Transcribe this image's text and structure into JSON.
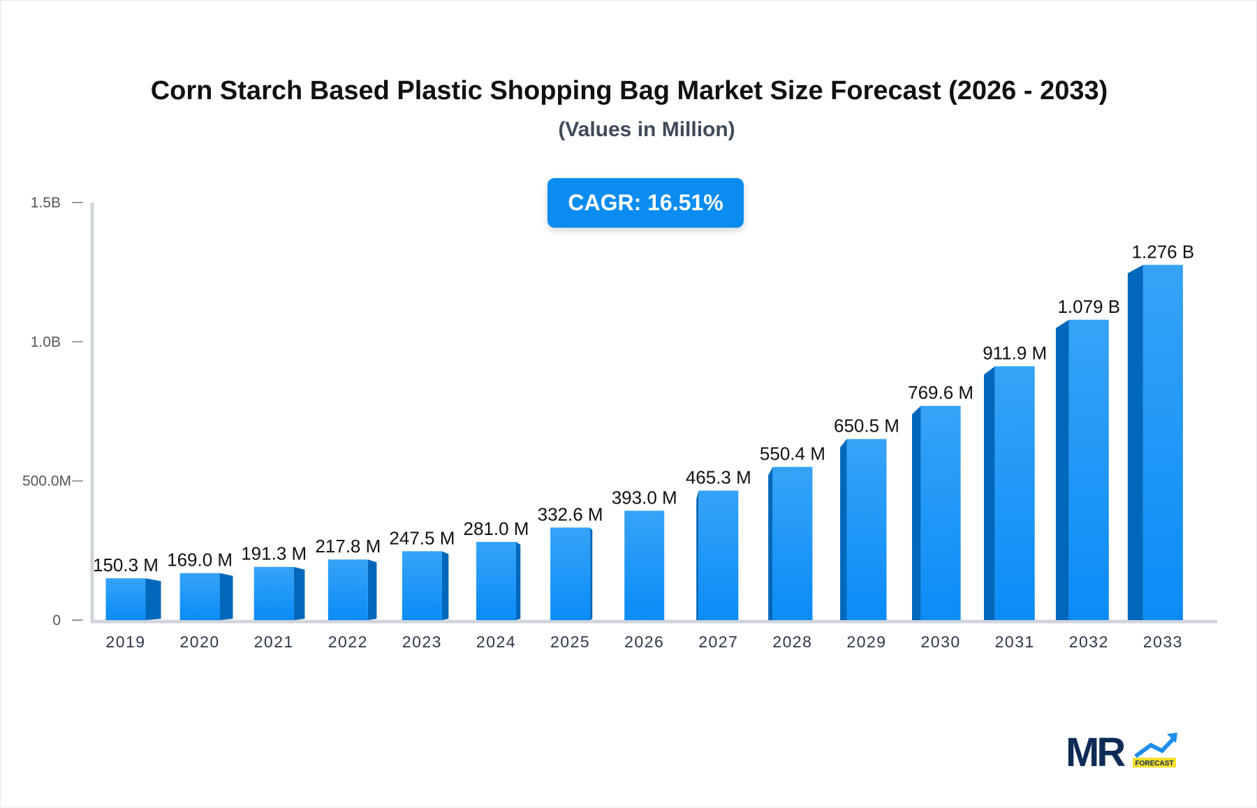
{
  "chart_data": {
    "type": "bar",
    "title": "Corn Starch Based Plastic Shopping Bag Market Size Forecast (2026 - 2033)",
    "subtitle": "(Values in Million)",
    "badge": "CAGR: 16.51%",
    "categories": [
      "2019",
      "2020",
      "2021",
      "2022",
      "2023",
      "2024",
      "2025",
      "2026",
      "2027",
      "2028",
      "2029",
      "2030",
      "2031",
      "2032",
      "2033"
    ],
    "values": [
      150.3,
      169.0,
      191.3,
      217.8,
      247.5,
      281.0,
      332.6,
      393.0,
      465.3,
      550.4,
      650.5,
      769.6,
      911.9,
      1079,
      1276
    ],
    "data_labels": [
      "150.3 M",
      "169.0 M",
      "191.3 M",
      "217.8 M",
      "247.5 M",
      "281.0 M",
      "332.6 M",
      "393.0 M",
      "465.3 M",
      "550.4 M",
      "650.5 M",
      "769.6 M",
      "911.9 M",
      "1.079 B",
      "1.276 B"
    ],
    "unit": "Million",
    "ylim": [
      0,
      1500
    ],
    "yticks": [
      0,
      500,
      1000,
      1500
    ],
    "ytick_labels": [
      "0",
      "500.0M",
      "1.0B",
      "1.5B"
    ],
    "grid": false,
    "colors": {
      "front_top": "#36a3f7",
      "front_bottom": "#0a8cf8",
      "side": "#0068bb",
      "badge": "#0a8cf0"
    }
  },
  "logo": {
    "text": "MR",
    "tagline": "FORECAST"
  }
}
